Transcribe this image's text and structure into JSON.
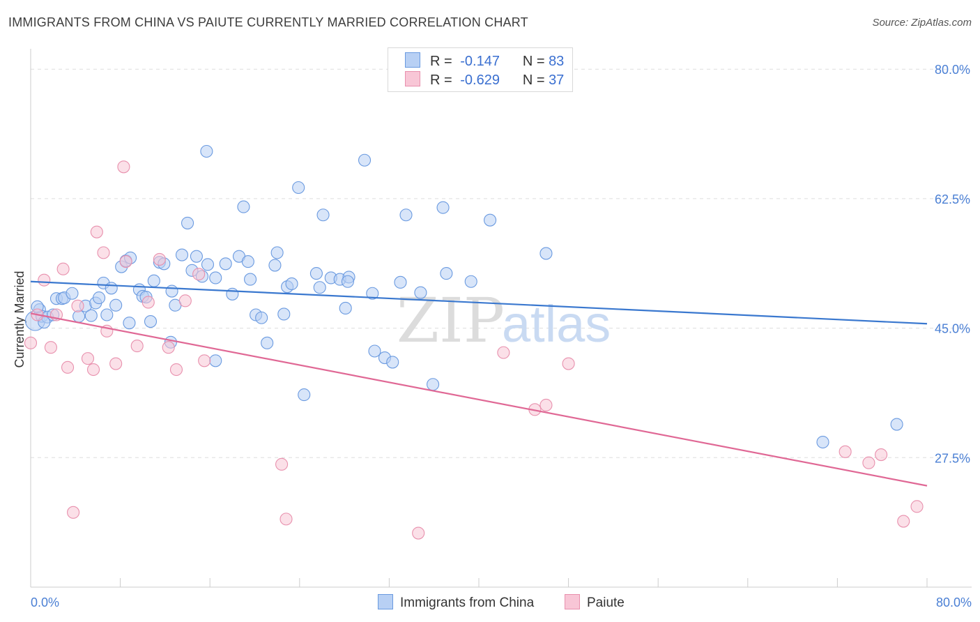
{
  "title": "IMMIGRANTS FROM CHINA VS PAIUTE CURRENTLY MARRIED CORRELATION CHART",
  "source": "Source: ZipAtlas.com",
  "watermark": {
    "zip": "ZIP",
    "atlas": "atlas"
  },
  "legend": {
    "r_label": "R =",
    "n_label": "N =",
    "series": [
      {
        "name": "Immigrants from China",
        "r": "-0.147",
        "n": "83",
        "fill": "#b8d0f4",
        "stroke": "#6a9ae0"
      },
      {
        "name": "Paiute",
        "r": "-0.629",
        "n": "37",
        "fill": "#f8c6d6",
        "stroke": "#e890ad"
      }
    ]
  },
  "chart_data": {
    "type": "scatter",
    "title": "IMMIGRANTS FROM CHINA VS PAIUTE CURRENTLY MARRIED CORRELATION CHART",
    "xlabel": "",
    "ylabel": "Currently Married",
    "xlim": [
      0,
      80
    ],
    "ylim": [
      10,
      82
    ],
    "x_tick_labels": [
      "0.0%",
      "80.0%"
    ],
    "y_ticks": [
      27.5,
      45.0,
      62.5,
      80.0
    ],
    "y_tick_labels": [
      "27.5%",
      "45.0%",
      "62.5%",
      "80.0%"
    ],
    "grid": "horizontal dashed",
    "series": [
      {
        "name": "Immigrants from China",
        "color": "#6a9ae0",
        "fill": "#b8d0f4",
        "trend": {
          "x": [
            0,
            80
          ],
          "y": [
            51.3,
            45.6
          ],
          "color": "#3a78cf"
        },
        "points": [
          [
            0.4,
            46.0
          ],
          [
            0.8,
            47.5
          ],
          [
            1.0,
            46.6
          ],
          [
            1.5,
            46.5
          ],
          [
            2.0,
            46.8
          ],
          [
            2.3,
            49.0
          ],
          [
            2.8,
            49.0
          ],
          [
            3.0,
            49.1
          ],
          [
            3.7,
            49.7
          ],
          [
            4.3,
            46.6
          ],
          [
            4.9,
            48.0
          ],
          [
            5.4,
            46.7
          ],
          [
            5.8,
            48.4
          ],
          [
            6.1,
            49.1
          ],
          [
            6.5,
            51.1
          ],
          [
            6.8,
            46.8
          ],
          [
            7.2,
            50.4
          ],
          [
            7.6,
            48.1
          ],
          [
            8.1,
            53.3
          ],
          [
            8.5,
            54.1
          ],
          [
            8.9,
            54.5
          ],
          [
            8.8,
            45.7
          ],
          [
            9.7,
            50.2
          ],
          [
            10.0,
            49.3
          ],
          [
            10.3,
            49.2
          ],
          [
            10.7,
            45.9
          ],
          [
            11.0,
            51.4
          ],
          [
            11.5,
            53.9
          ],
          [
            11.9,
            53.7
          ],
          [
            12.6,
            50.0
          ],
          [
            12.9,
            48.1
          ],
          [
            12.5,
            43.1
          ],
          [
            13.5,
            54.9
          ],
          [
            14.0,
            59.2
          ],
          [
            14.4,
            52.8
          ],
          [
            14.8,
            54.7
          ],
          [
            15.3,
            52.0
          ],
          [
            15.8,
            53.6
          ],
          [
            15.7,
            68.9
          ],
          [
            16.5,
            51.8
          ],
          [
            16.5,
            40.6
          ],
          [
            17.4,
            53.7
          ],
          [
            18.0,
            49.6
          ],
          [
            18.6,
            54.7
          ],
          [
            19.0,
            61.4
          ],
          [
            19.4,
            54.0
          ],
          [
            19.6,
            51.6
          ],
          [
            20.1,
            46.8
          ],
          [
            20.6,
            46.4
          ],
          [
            21.1,
            43.0
          ],
          [
            21.8,
            53.5
          ],
          [
            22.0,
            55.2
          ],
          [
            22.6,
            46.9
          ],
          [
            22.9,
            50.6
          ],
          [
            23.3,
            51.0
          ],
          [
            23.9,
            64.0
          ],
          [
            24.4,
            36.0
          ],
          [
            25.5,
            52.4
          ],
          [
            25.8,
            50.5
          ],
          [
            26.1,
            60.3
          ],
          [
            26.8,
            51.8
          ],
          [
            27.6,
            51.6
          ],
          [
            28.4,
            51.9
          ],
          [
            28.3,
            51.3
          ],
          [
            28.1,
            47.7
          ],
          [
            29.8,
            67.7
          ],
          [
            30.5,
            49.7
          ],
          [
            30.7,
            41.9
          ],
          [
            31.6,
            41.0
          ],
          [
            32.3,
            40.4
          ],
          [
            33.0,
            51.2
          ],
          [
            33.5,
            60.3
          ],
          [
            34.8,
            49.8
          ],
          [
            35.9,
            37.4
          ],
          [
            36.8,
            61.3
          ],
          [
            37.1,
            52.4
          ],
          [
            39.3,
            51.3
          ],
          [
            41.0,
            59.6
          ],
          [
            46.0,
            55.1
          ],
          [
            70.7,
            29.6
          ],
          [
            77.3,
            32.0
          ],
          [
            0.6,
            47.9
          ],
          [
            1.2,
            45.8
          ]
        ]
      },
      {
        "name": "Paiute",
        "color": "#e890ad",
        "fill": "#f8c6d6",
        "trend": {
          "x": [
            0,
            80
          ],
          "y": [
            47.0,
            23.7
          ],
          "color": "#e06895"
        },
        "points": [
          [
            0.0,
            43.0
          ],
          [
            1.2,
            51.5
          ],
          [
            1.8,
            42.4
          ],
          [
            2.3,
            46.8
          ],
          [
            2.9,
            53.0
          ],
          [
            3.3,
            39.7
          ],
          [
            3.8,
            20.1
          ],
          [
            4.2,
            48.0
          ],
          [
            5.1,
            40.9
          ],
          [
            5.9,
            58.0
          ],
          [
            5.6,
            39.4
          ],
          [
            6.5,
            55.2
          ],
          [
            6.8,
            44.6
          ],
          [
            7.6,
            40.2
          ],
          [
            8.3,
            66.8
          ],
          [
            8.5,
            54.0
          ],
          [
            9.5,
            42.6
          ],
          [
            10.5,
            48.5
          ],
          [
            11.5,
            54.3
          ],
          [
            12.3,
            42.4
          ],
          [
            13.0,
            39.4
          ],
          [
            13.8,
            48.7
          ],
          [
            15.0,
            52.3
          ],
          [
            15.5,
            40.6
          ],
          [
            22.4,
            26.6
          ],
          [
            22.8,
            19.2
          ],
          [
            34.6,
            17.3
          ],
          [
            42.2,
            41.7
          ],
          [
            45.0,
            34.0
          ],
          [
            46.0,
            34.6
          ],
          [
            48.0,
            40.2
          ],
          [
            72.7,
            28.3
          ],
          [
            74.8,
            26.8
          ],
          [
            75.9,
            27.9
          ],
          [
            77.9,
            18.9
          ],
          [
            79.1,
            20.9
          ],
          [
            0.6,
            46.8
          ]
        ]
      }
    ]
  }
}
